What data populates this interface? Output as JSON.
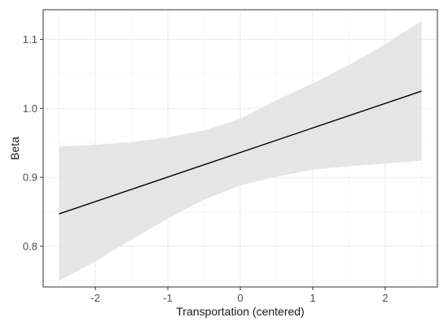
{
  "chart_data": {
    "type": "line",
    "title": "",
    "xlabel": "Transportation (centered)",
    "ylabel": "Beta",
    "xlim": [
      -2.72,
      2.72
    ],
    "ylim": [
      0.741,
      1.143
    ],
    "x_ticks": [
      -2,
      -1,
      0,
      1,
      2
    ],
    "x_tick_labels": [
      "-2",
      "-1",
      "0",
      "1",
      "2"
    ],
    "y_ticks": [
      0.8,
      0.9,
      1.0,
      1.1
    ],
    "y_tick_labels": [
      "0.8",
      "0.9",
      "1.0",
      "1.1"
    ],
    "grid": true,
    "series": [
      {
        "x": [
          -2.5,
          2.5
        ],
        "y": [
          0.847,
          1.025
        ]
      }
    ],
    "confidence_band": {
      "x": [
        -2.5,
        -2.0,
        -1.5,
        -1.0,
        -0.5,
        0.0,
        0.5,
        1.0,
        1.5,
        2.0,
        2.5
      ],
      "lower": [
        0.75,
        0.778,
        0.81,
        0.84,
        0.868,
        0.888,
        0.901,
        0.911,
        0.916,
        0.92,
        0.924
      ],
      "upper": [
        0.945,
        0.947,
        0.951,
        0.958,
        0.968,
        0.985,
        1.012,
        1.036,
        1.063,
        1.093,
        1.127
      ]
    },
    "colors": {
      "line": "#000000",
      "band": "#e5e5e5",
      "grid_major": "#ebebeb",
      "grid_minor": "#f4f4f4",
      "panel_border": "#333333"
    }
  }
}
